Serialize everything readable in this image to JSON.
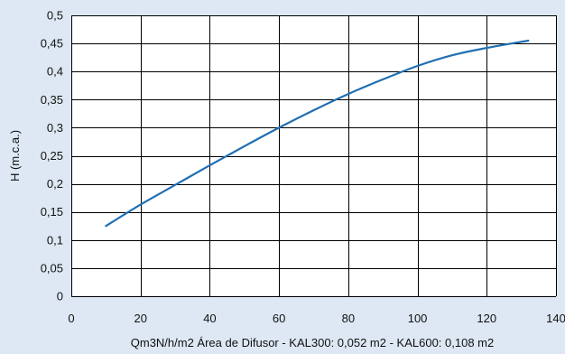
{
  "chart_data": {
    "type": "line",
    "title": "",
    "xlabel": "Qm3N/h/m2 Área de Difusor - KAL300: 0,052 m2 - KAL600: 0,108 m2",
    "ylabel": "H (m.c.a.)",
    "xlim": [
      0,
      140
    ],
    "ylim": [
      0,
      0.5
    ],
    "x_ticks": [
      0,
      20,
      40,
      60,
      80,
      100,
      120,
      140
    ],
    "x_tick_labels": [
      "0",
      "20",
      "40",
      "60",
      "80",
      "100",
      "120",
      "140"
    ],
    "y_ticks": [
      0,
      0.05,
      0.1,
      0.15,
      0.2,
      0.25,
      0.3,
      0.35,
      0.4,
      0.45,
      0.5
    ],
    "y_tick_labels": [
      "0",
      "0,05",
      "0,1",
      "0,15",
      "0,2",
      "0,25",
      "0,3",
      "0,35",
      "0,4",
      "0,45",
      "0,5"
    ],
    "grid": true,
    "legend": "none",
    "series": [
      {
        "color": "#1f6fb2",
        "x": [
          10,
          20,
          30,
          40,
          50,
          60,
          70,
          80,
          90,
          100,
          110,
          120,
          132
        ],
        "y": [
          0.125,
          0.163,
          0.198,
          0.233,
          0.267,
          0.3,
          0.331,
          0.36,
          0.386,
          0.41,
          0.429,
          0.442,
          0.455
        ]
      }
    ]
  },
  "colors": {
    "background": "#dde8f4",
    "plot_area": "#ffffff",
    "grid": "#000000",
    "line": "#1f6fb2"
  }
}
